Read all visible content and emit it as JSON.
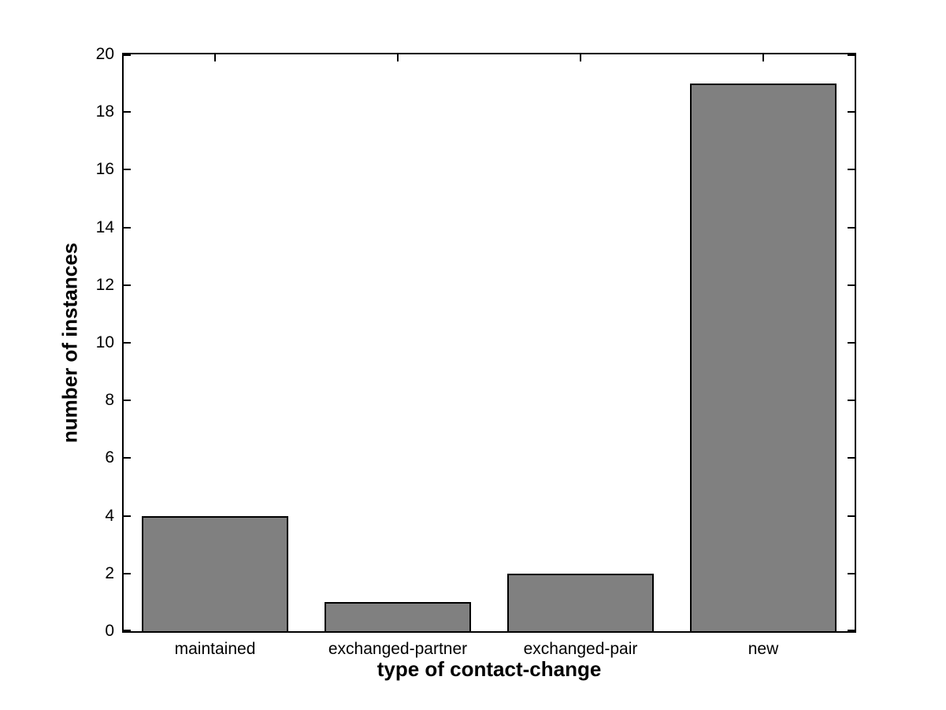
{
  "chart_data": {
    "type": "bar",
    "categories": [
      "maintained",
      "exchanged-partner",
      "exchanged-pair",
      "new"
    ],
    "values": [
      4,
      1,
      2,
      19
    ],
    "title": "",
    "xlabel": "type of contact-change",
    "ylabel": "number of instances",
    "ylim": [
      0,
      20
    ],
    "yticks": [
      0,
      2,
      4,
      6,
      8,
      10,
      12,
      14,
      16,
      18,
      20
    ],
    "bar_width_fraction": 0.8,
    "bar_fill_color": "#808080",
    "bar_edge_color": "#000000",
    "axis_color": "#000000",
    "background_color": "#ffffff",
    "grid": false,
    "legend": null,
    "tick_direction": "in",
    "box": true
  }
}
